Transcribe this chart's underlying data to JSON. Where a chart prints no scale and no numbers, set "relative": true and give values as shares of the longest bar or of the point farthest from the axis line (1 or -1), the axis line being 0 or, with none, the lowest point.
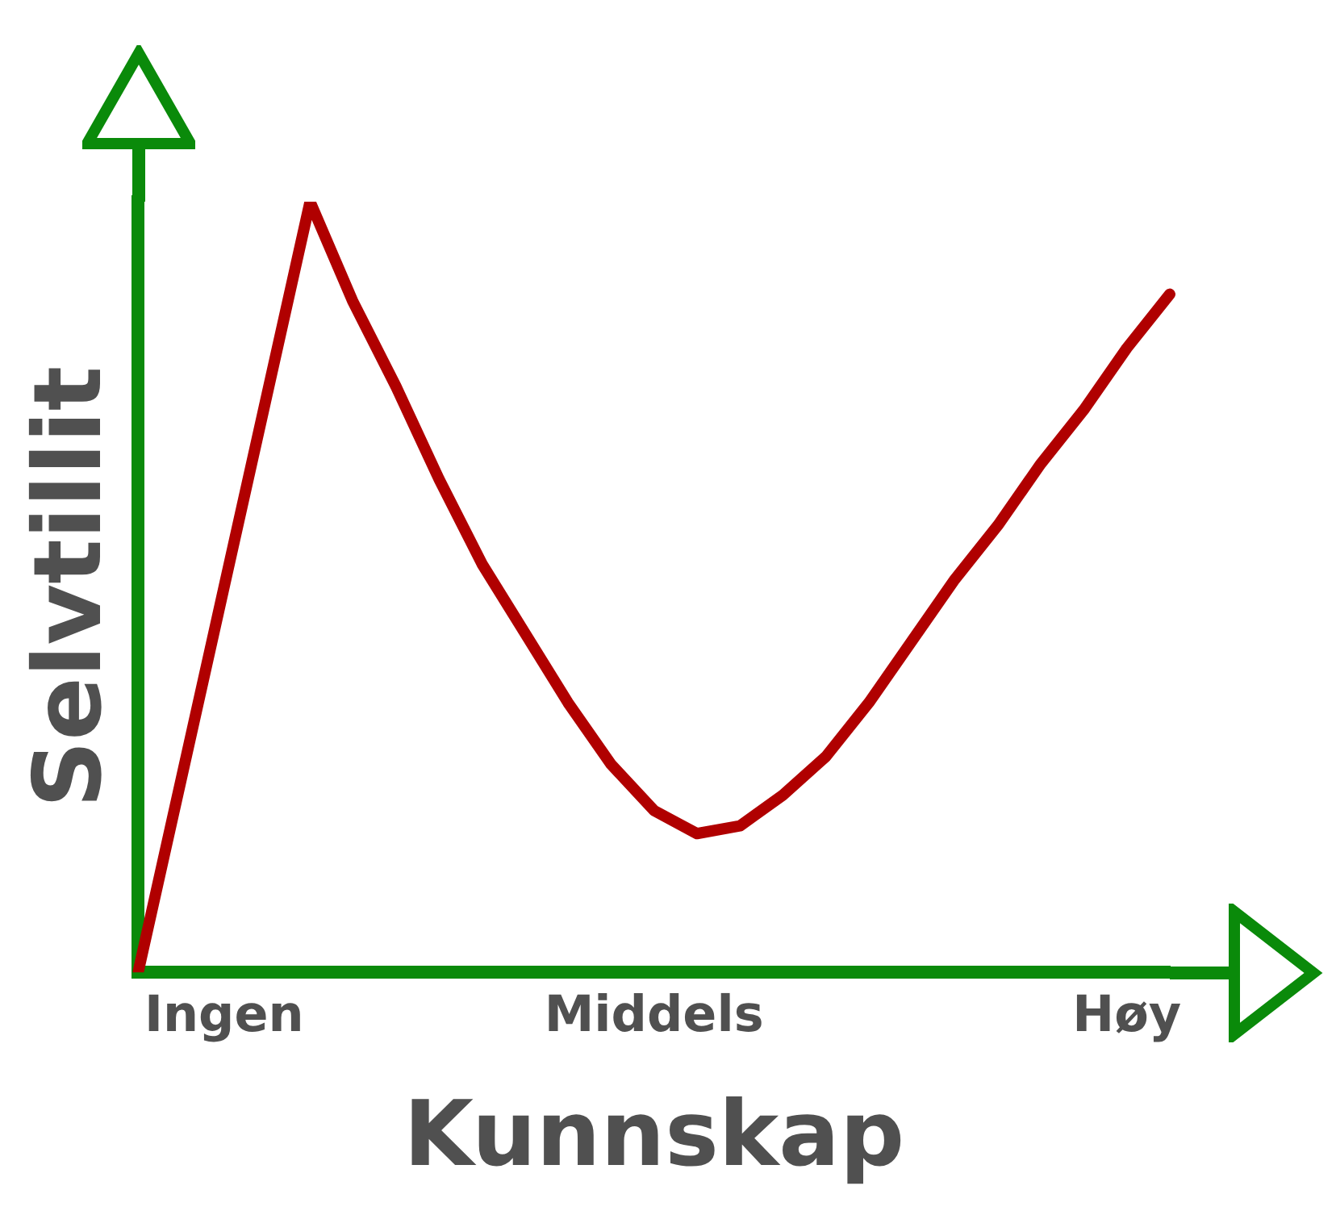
{
  "chart_data": {
    "type": "line",
    "xlabel": "Kunnskap",
    "ylabel": "Selvtillit",
    "relative": true,
    "line_style": "solid",
    "categories": [
      null,
      null,
      "Ingen",
      null,
      null,
      null,
      null,
      null,
      null,
      null,
      null,
      null,
      "Middels",
      null,
      null,
      null,
      null,
      null,
      null,
      null,
      null,
      null,
      null,
      "Høy",
      null
    ],
    "series": [
      {
        "color": "#b00000",
        "values": [
          0,
          0.25,
          0.5,
          0.75,
          1,
          0.87,
          0.76,
          0.64,
          0.53,
          0.44,
          0.35,
          0.27,
          0.21,
          0.18,
          0.19,
          0.23,
          0.28,
          0.35,
          0.43,
          0.51,
          0.58,
          0.66,
          0.73,
          0.81,
          0.88
        ]
      }
    ]
  }
}
